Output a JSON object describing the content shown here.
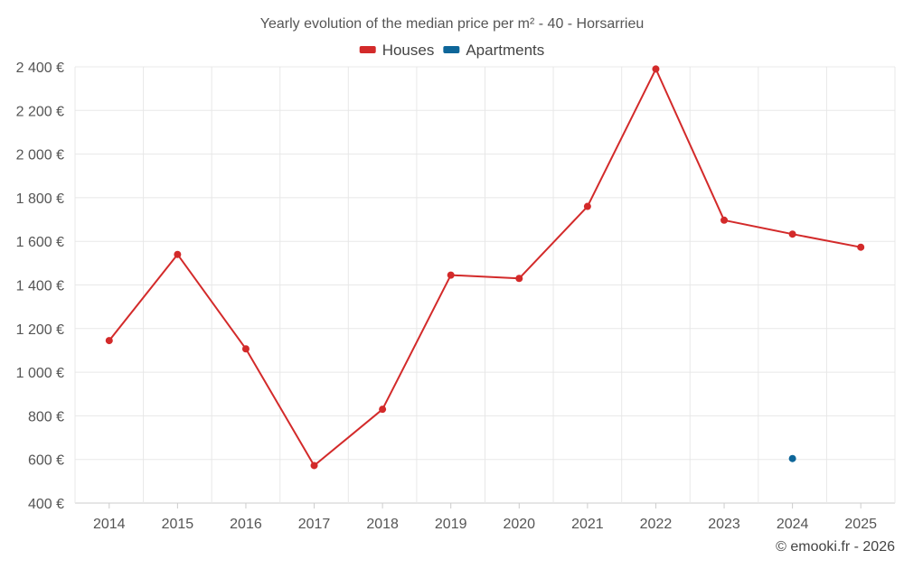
{
  "chart_data": {
    "type": "line",
    "title": "Yearly evolution of the median price per m² - 40 - Horsarrieu",
    "categories": [
      "2014",
      "2015",
      "2016",
      "2017",
      "2018",
      "2019",
      "2020",
      "2021",
      "2022",
      "2023",
      "2024",
      "2025"
    ],
    "series": [
      {
        "name": "Houses",
        "color": "#d32a2a",
        "values": [
          1145,
          1540,
          1107,
          572,
          830,
          1445,
          1430,
          1760,
          2390,
          1697,
          1633,
          1573
        ]
      },
      {
        "name": "Apartments",
        "color": "#0e6699",
        "values": [
          null,
          null,
          null,
          null,
          null,
          null,
          null,
          null,
          null,
          null,
          604,
          null
        ]
      }
    ],
    "ylim": [
      400,
      2400
    ],
    "yticks": [
      400,
      600,
      800,
      1000,
      1200,
      1400,
      1600,
      1800,
      2000,
      2200,
      2400
    ],
    "ytick_labels": [
      "400 €",
      "600 €",
      "800 €",
      "1 000 €",
      "1 200 €",
      "1 400 €",
      "1 600 €",
      "1 800 €",
      "2 000 €",
      "2 200 €",
      "2 400 €"
    ],
    "legend_position": "top-center",
    "grid": true,
    "xlabel": "",
    "ylabel": ""
  },
  "credit": "© emooki.fr - 2026"
}
